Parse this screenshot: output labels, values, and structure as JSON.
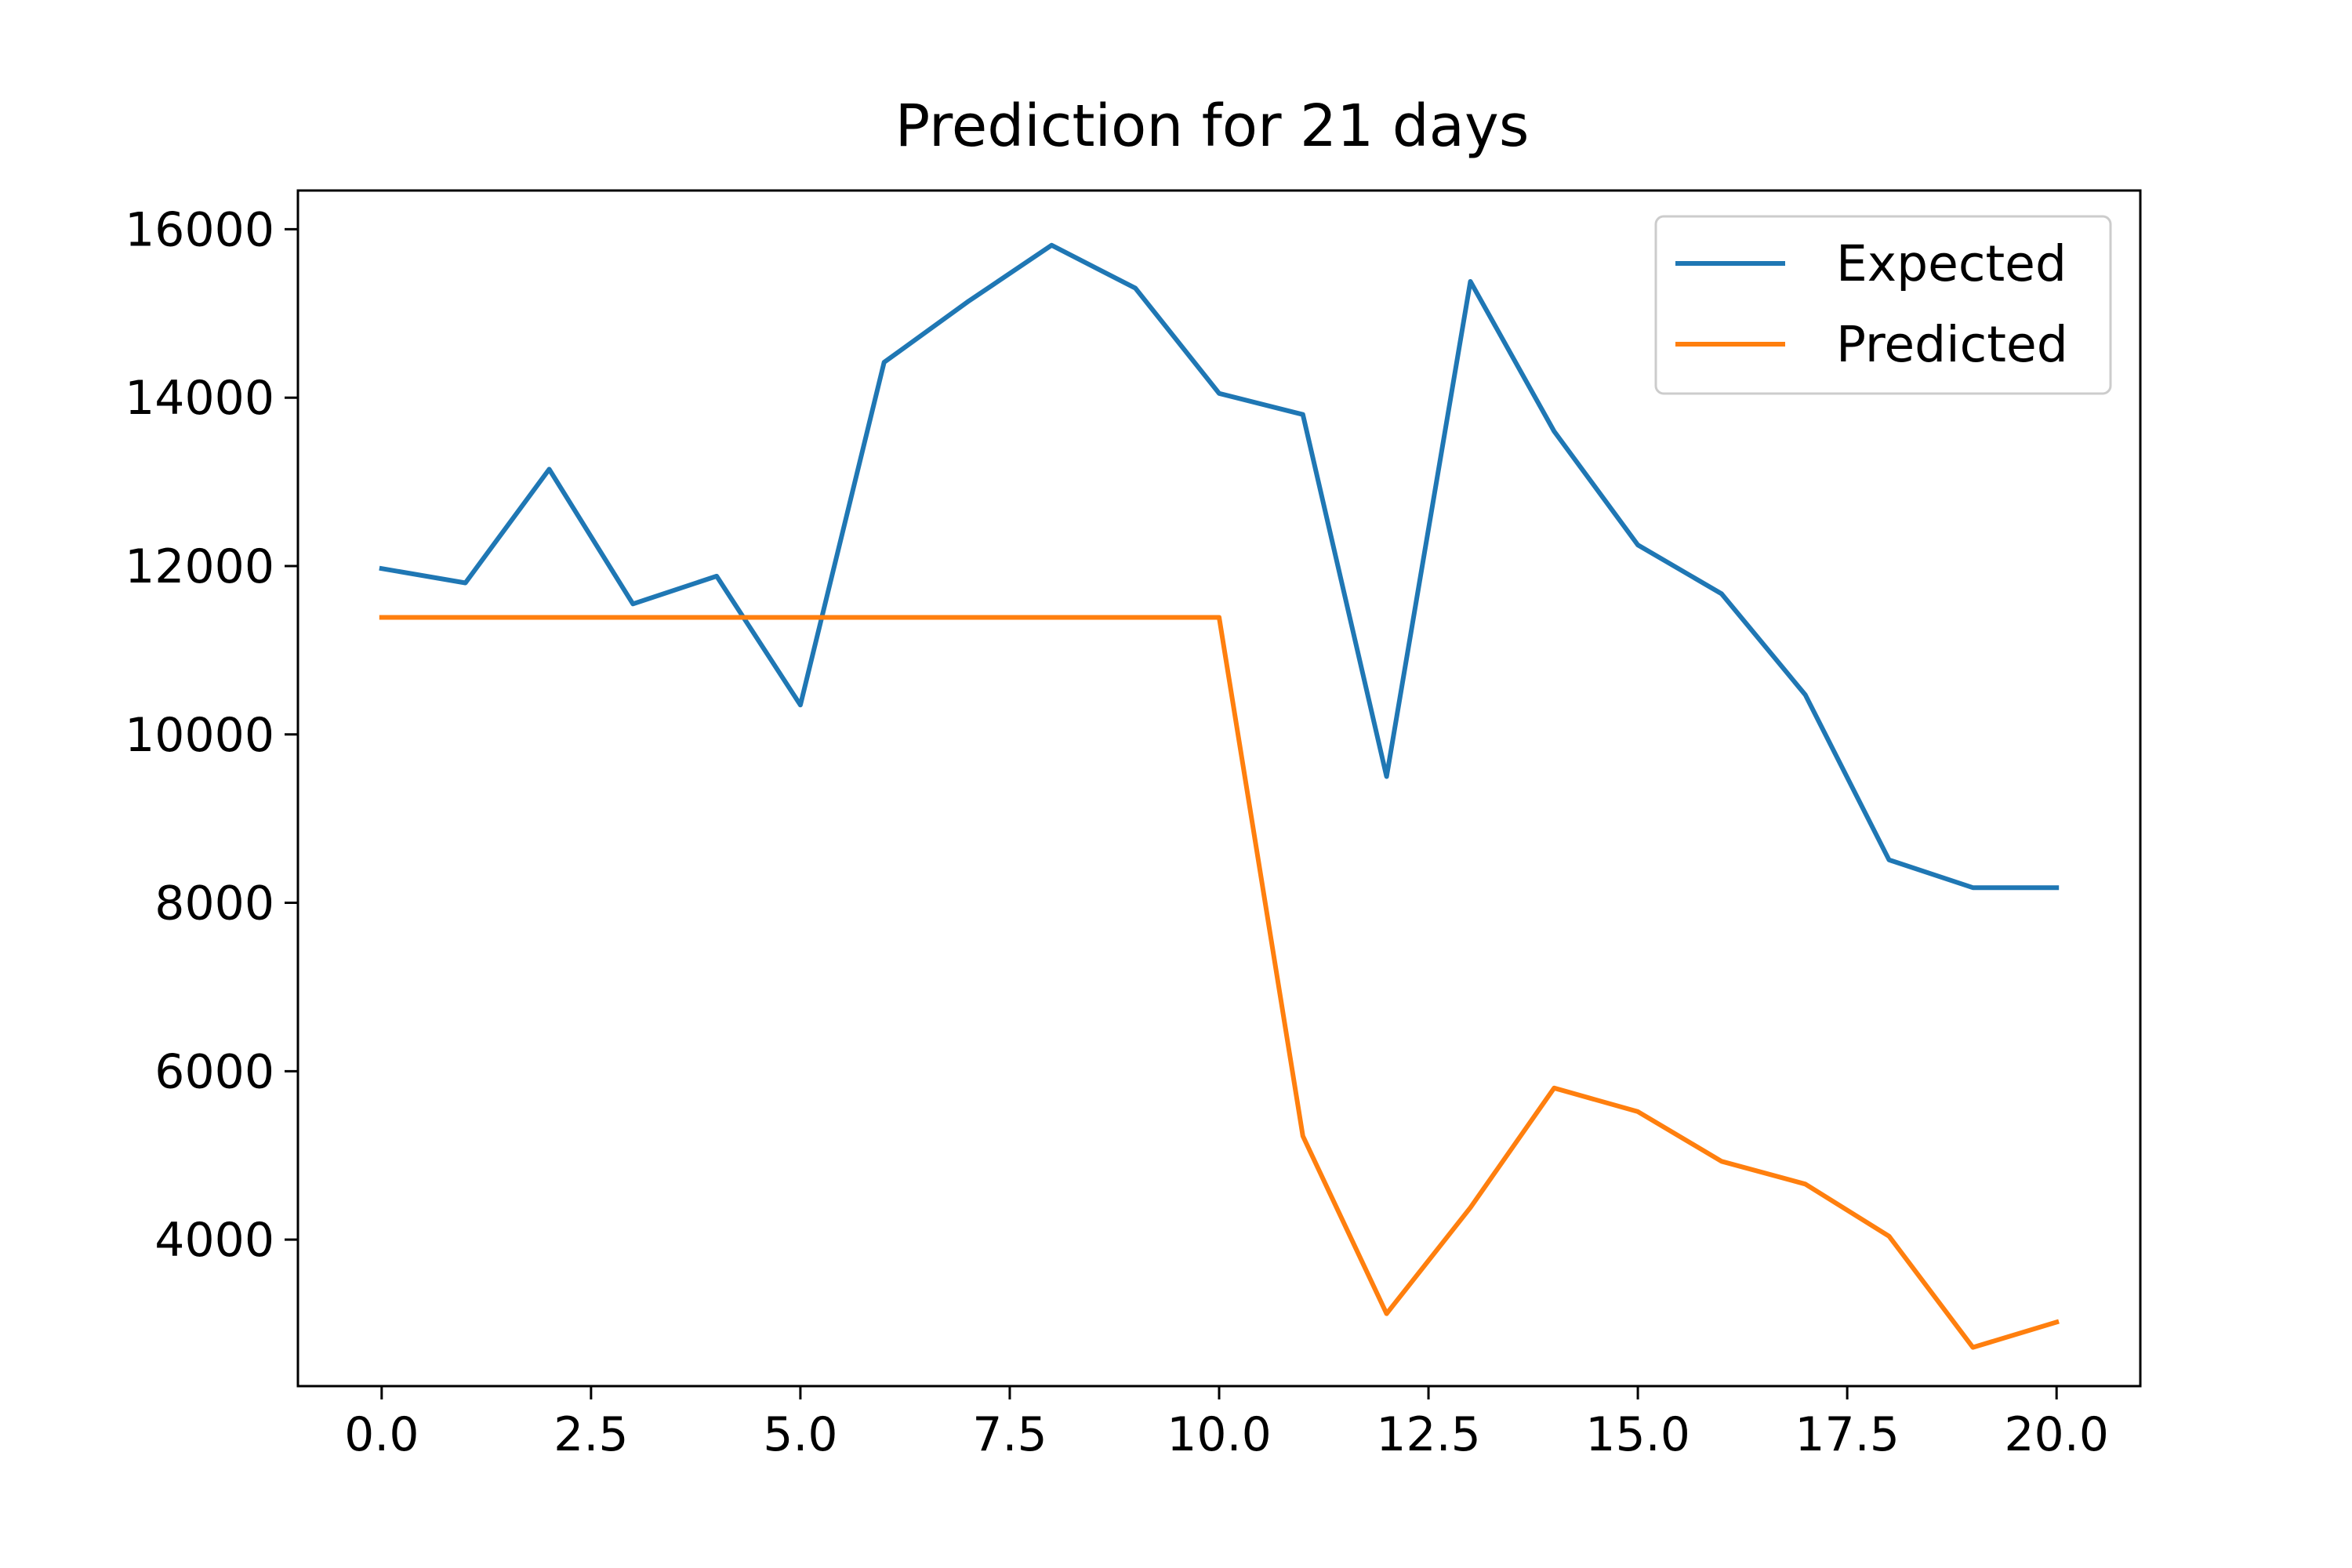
{
  "chart_data": {
    "type": "line",
    "title": "Prediction for 21 days",
    "xlabel": "",
    "ylabel": "",
    "xlim": [
      -1,
      21
    ],
    "ylim": [
      2260,
      16460
    ],
    "xticks": [
      0.0,
      2.5,
      5.0,
      7.5,
      10.0,
      12.5,
      15.0,
      17.5,
      20.0
    ],
    "xtick_labels": [
      "0.0",
      "2.5",
      "5.0",
      "7.5",
      "10.0",
      "12.5",
      "15.0",
      "17.5",
      "20.0"
    ],
    "yticks": [
      4000,
      6000,
      8000,
      10000,
      12000,
      14000,
      16000
    ],
    "ytick_labels": [
      "4000",
      "6000",
      "8000",
      "10000",
      "12000",
      "14000",
      "16000"
    ],
    "grid": false,
    "legend_position": "top-right",
    "x": [
      0,
      1,
      2,
      3,
      4,
      5,
      6,
      7,
      8,
      9,
      10,
      11,
      12,
      13,
      14,
      15,
      16,
      17,
      18,
      19,
      20
    ],
    "series": [
      {
        "name": "Expected",
        "color": "#1f77b4",
        "values": [
          11970,
          11800,
          13150,
          11550,
          11880,
          10350,
          14420,
          15140,
          15810,
          15300,
          14050,
          13800,
          9500,
          15380,
          13600,
          12250,
          11670,
          10470,
          8510,
          8180,
          8180
        ]
      },
      {
        "name": "Predicted",
        "color": "#ff7f0e",
        "values": [
          11390,
          11390,
          11390,
          11390,
          11390,
          11390,
          11390,
          11390,
          11390,
          11390,
          11390,
          5230,
          3120,
          4380,
          5800,
          5520,
          4930,
          4660,
          4040,
          2720,
          3020
        ]
      }
    ]
  }
}
